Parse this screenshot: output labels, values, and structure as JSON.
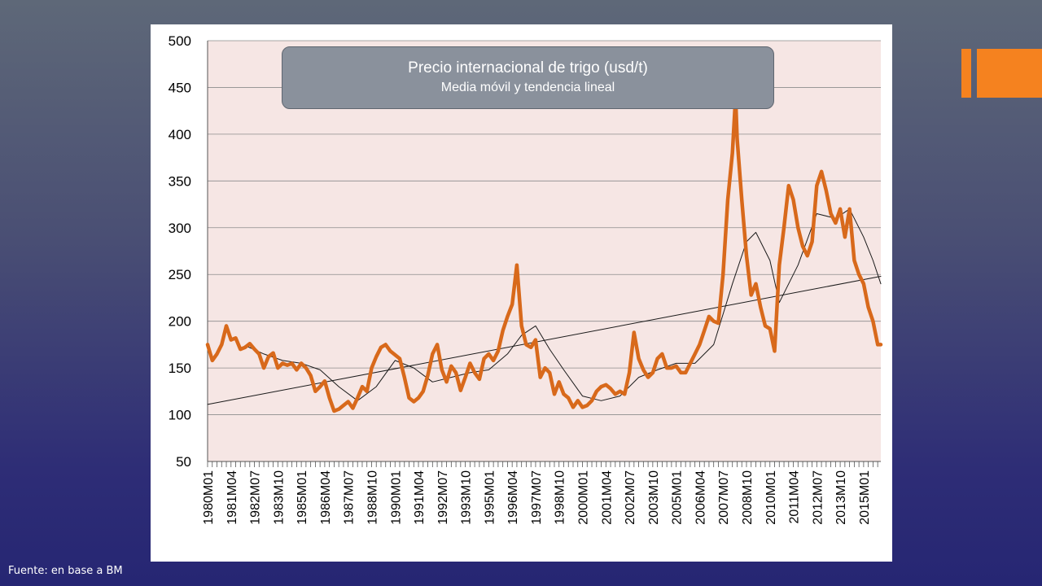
{
  "source": "Fuente: en base a BM",
  "colors": {
    "plot_bg": "#f6e6e4",
    "price_line": "#d8691b",
    "accent": "#f5821f",
    "title_box": "#8a919c"
  },
  "chart_data": {
    "type": "line",
    "title": "Precio internacional de trigo (usd/t)",
    "subtitle": "Media móvil y tendencia lineal",
    "xlabel": "",
    "ylabel": "",
    "ylim": [
      50,
      500
    ],
    "y_ticks": [
      500,
      450,
      400,
      350,
      300,
      250,
      200,
      150,
      100,
      50
    ],
    "grid": true,
    "x_range": [
      "1980M01",
      "2015M12"
    ],
    "x_tick_labels": [
      "1980M01",
      "1981M04",
      "1982M07",
      "1983M10",
      "1985M01",
      "1986M04",
      "1987M07",
      "1988M10",
      "1990M01",
      "1991M04",
      "1992M07",
      "1993M10",
      "1995M01",
      "1996M04",
      "1997M07",
      "1998M10",
      "2000M01",
      "2001M04",
      "2002M07",
      "2003M10",
      "2005M01",
      "2006M04",
      "2007M07",
      "2008M10",
      "2010M01",
      "2011M04",
      "2012M07",
      "2013M10",
      "2015M01"
    ],
    "series": [
      {
        "kind": "price",
        "values": [
          [
            "1980M01",
            175
          ],
          [
            "1980M04",
            158
          ],
          [
            "1980M07",
            165
          ],
          [
            "1980M10",
            175
          ],
          [
            "1981M01",
            195
          ],
          [
            "1981M04",
            180
          ],
          [
            "1981M07",
            182
          ],
          [
            "1981M10",
            170
          ],
          [
            "1982M01",
            172
          ],
          [
            "1982M04",
            176
          ],
          [
            "1982M07",
            170
          ],
          [
            "1982M10",
            165
          ],
          [
            "1983M01",
            150
          ],
          [
            "1983M04",
            162
          ],
          [
            "1983M07",
            166
          ],
          [
            "1983M10",
            150
          ],
          [
            "1984M01",
            155
          ],
          [
            "1984M04",
            153
          ],
          [
            "1984M07",
            155
          ],
          [
            "1984M10",
            148
          ],
          [
            "1985M01",
            155
          ],
          [
            "1985M04",
            150
          ],
          [
            "1985M07",
            142
          ],
          [
            "1985M10",
            125
          ],
          [
            "1986M01",
            130
          ],
          [
            "1986M04",
            136
          ],
          [
            "1986M07",
            118
          ],
          [
            "1986M10",
            104
          ],
          [
            "1987M01",
            106
          ],
          [
            "1987M04",
            110
          ],
          [
            "1987M07",
            114
          ],
          [
            "1987M10",
            107
          ],
          [
            "1988M01",
            118
          ],
          [
            "1988M04",
            130
          ],
          [
            "1988M07",
            125
          ],
          [
            "1988M10",
            150
          ],
          [
            "1989M01",
            162
          ],
          [
            "1989M04",
            172
          ],
          [
            "1989M07",
            175
          ],
          [
            "1989M10",
            168
          ],
          [
            "1990M01",
            164
          ],
          [
            "1990M04",
            160
          ],
          [
            "1990M07",
            140
          ],
          [
            "1990M10",
            118
          ],
          [
            "1991M01",
            114
          ],
          [
            "1991M04",
            118
          ],
          [
            "1991M07",
            125
          ],
          [
            "1991M10",
            142
          ],
          [
            "1992M01",
            165
          ],
          [
            "1992M04",
            175
          ],
          [
            "1992M07",
            148
          ],
          [
            "1992M10",
            135
          ],
          [
            "1993M01",
            152
          ],
          [
            "1993M04",
            145
          ],
          [
            "1993M07",
            126
          ],
          [
            "1993M10",
            140
          ],
          [
            "1994M01",
            155
          ],
          [
            "1994M04",
            145
          ],
          [
            "1994M07",
            138
          ],
          [
            "1994M10",
            160
          ],
          [
            "1995M01",
            165
          ],
          [
            "1995M04",
            158
          ],
          [
            "1995M07",
            168
          ],
          [
            "1995M10",
            190
          ],
          [
            "1996M01",
            205
          ],
          [
            "1996M04",
            218
          ],
          [
            "1996M07",
            260
          ],
          [
            "1996M10",
            195
          ],
          [
            "1997M01",
            175
          ],
          [
            "1997M04",
            172
          ],
          [
            "1997M07",
            180
          ],
          [
            "1997M10",
            140
          ],
          [
            "1998M01",
            150
          ],
          [
            "1998M04",
            145
          ],
          [
            "1998M07",
            122
          ],
          [
            "1998M10",
            135
          ],
          [
            "1999M01",
            122
          ],
          [
            "1999M04",
            118
          ],
          [
            "1999M07",
            108
          ],
          [
            "1999M10",
            115
          ],
          [
            "2000M01",
            108
          ],
          [
            "2000M04",
            110
          ],
          [
            "2000M07",
            115
          ],
          [
            "2000M10",
            125
          ],
          [
            "2001M01",
            130
          ],
          [
            "2001M04",
            132
          ],
          [
            "2001M07",
            128
          ],
          [
            "2001M10",
            122
          ],
          [
            "2002M01",
            125
          ],
          [
            "2002M04",
            122
          ],
          [
            "2002M07",
            145
          ],
          [
            "2002M10",
            188
          ],
          [
            "2003M01",
            160
          ],
          [
            "2003M04",
            148
          ],
          [
            "2003M07",
            140
          ],
          [
            "2003M10",
            145
          ],
          [
            "2004M01",
            160
          ],
          [
            "2004M04",
            165
          ],
          [
            "2004M07",
            150
          ],
          [
            "2004M10",
            150
          ],
          [
            "2005M01",
            152
          ],
          [
            "2005M04",
            145
          ],
          [
            "2005M07",
            145
          ],
          [
            "2005M10",
            155
          ],
          [
            "2006M01",
            165
          ],
          [
            "2006M04",
            175
          ],
          [
            "2006M07",
            190
          ],
          [
            "2006M10",
            205
          ],
          [
            "2007M01",
            200
          ],
          [
            "2007M04",
            198
          ],
          [
            "2007M07",
            250
          ],
          [
            "2007M10",
            330
          ],
          [
            "2008M01",
            380
          ],
          [
            "2008M03",
            440
          ],
          [
            "2008M04",
            395
          ],
          [
            "2008M07",
            330
          ],
          [
            "2008M10",
            270
          ],
          [
            "2009M01",
            228
          ],
          [
            "2009M04",
            240
          ],
          [
            "2009M07",
            215
          ],
          [
            "2009M10",
            195
          ],
          [
            "2010M01",
            192
          ],
          [
            "2010M04",
            168
          ],
          [
            "2010M07",
            260
          ],
          [
            "2010M10",
            300
          ],
          [
            "2011M01",
            345
          ],
          [
            "2011M04",
            330
          ],
          [
            "2011M07",
            300
          ],
          [
            "2011M10",
            280
          ],
          [
            "2012M01",
            270
          ],
          [
            "2012M04",
            285
          ],
          [
            "2012M07",
            345
          ],
          [
            "2012M10",
            360
          ],
          [
            "2013M01",
            340
          ],
          [
            "2013M04",
            315
          ],
          [
            "2013M07",
            305
          ],
          [
            "2013M10",
            320
          ],
          [
            "2014M01",
            290
          ],
          [
            "2014M04",
            320
          ],
          [
            "2014M07",
            265
          ],
          [
            "2014M10",
            250
          ],
          [
            "2015M01",
            240
          ],
          [
            "2015M04",
            215
          ],
          [
            "2015M07",
            200
          ],
          [
            "2015M10",
            175
          ],
          [
            "2015M12",
            175
          ]
        ]
      },
      {
        "kind": "moving-average",
        "values": [
          [
            "1982M01",
            174
          ],
          [
            "1983M01",
            165
          ],
          [
            "1984M01",
            158
          ],
          [
            "1985M01",
            155
          ],
          [
            "1986M01",
            148
          ],
          [
            "1987M01",
            130
          ],
          [
            "1988M01",
            115
          ],
          [
            "1989M01",
            130
          ],
          [
            "1990M01",
            158
          ],
          [
            "1991M01",
            150
          ],
          [
            "1992M01",
            135
          ],
          [
            "1993M01",
            140
          ],
          [
            "1994M01",
            145
          ],
          [
            "1995M01",
            148
          ],
          [
            "1996M01",
            165
          ],
          [
            "1996M10",
            185
          ],
          [
            "1997M07",
            195
          ],
          [
            "1998M04",
            170
          ],
          [
            "1999M01",
            148
          ],
          [
            "2000M01",
            120
          ],
          [
            "2001M01",
            115
          ],
          [
            "2002M01",
            120
          ],
          [
            "2003M01",
            140
          ],
          [
            "2004M01",
            148
          ],
          [
            "2005M01",
            155
          ],
          [
            "2006M01",
            155
          ],
          [
            "2007M01",
            175
          ],
          [
            "2008M01",
            240
          ],
          [
            "2008M10",
            285
          ],
          [
            "2009M04",
            295
          ],
          [
            "2010M01",
            265
          ],
          [
            "2010M07",
            220
          ],
          [
            "2011M07",
            260
          ],
          [
            "2012M07",
            315
          ],
          [
            "2013M07",
            310
          ],
          [
            "2014M04",
            320
          ],
          [
            "2015M01",
            290
          ],
          [
            "2015M07",
            265
          ],
          [
            "2015M12",
            240
          ]
        ]
      },
      {
        "kind": "linear-trend",
        "values": [
          [
            "1980M01",
            111
          ],
          [
            "2015M12",
            248
          ]
        ]
      }
    ]
  }
}
